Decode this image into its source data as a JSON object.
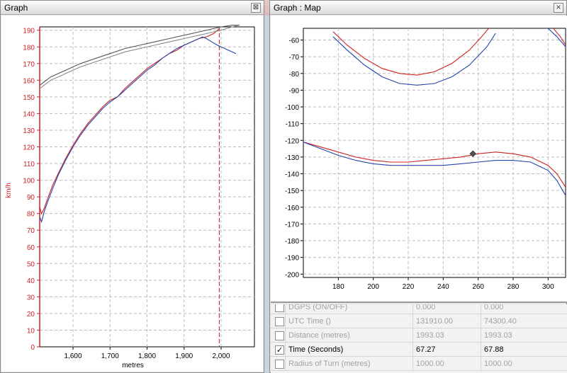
{
  "left_window": {
    "title": "Graph",
    "close_glyph": "⊠"
  },
  "right_window": {
    "title": "Graph : Map",
    "close_glyph": "×"
  },
  "chart_data": [
    {
      "type": "line",
      "xlabel": "metres",
      "ylabel": "km/h",
      "xlim": [
        1510,
        2090
      ],
      "ylim": [
        0,
        192
      ],
      "x_ticks": [
        1600,
        1700,
        1800,
        1900,
        2000
      ],
      "x_tick_labels": [
        "1,600",
        "1,700",
        "1,800",
        "1,900",
        "2,000"
      ],
      "y_ticks": [
        0,
        10,
        20,
        30,
        40,
        50,
        60,
        70,
        80,
        90,
        100,
        110,
        120,
        130,
        140,
        150,
        160,
        170,
        180,
        190
      ],
      "grid": true,
      "cursor_x": 1995,
      "ylabel_color": "#cc2222",
      "series": [
        {
          "color": "#cc2222",
          "x": [
            1510,
            1515,
            1522,
            1530,
            1545,
            1560,
            1580,
            1600,
            1620,
            1640,
            1660,
            1680,
            1700,
            1720,
            1740,
            1760,
            1780,
            1800,
            1820,
            1840,
            1860,
            1880,
            1900,
            1920,
            1940,
            1960,
            1980,
            1990,
            1995
          ],
          "y": [
            84,
            80,
            83,
            88,
            97,
            104,
            113,
            121,
            128,
            134,
            139,
            144,
            148,
            150,
            155,
            159,
            163,
            167,
            170,
            173,
            176,
            178,
            181,
            183,
            185,
            186,
            188,
            190,
            191
          ]
        },
        {
          "color": "#2244aa",
          "x": [
            1510,
            1515,
            1522,
            1530,
            1545,
            1560,
            1580,
            1600,
            1620,
            1640,
            1660,
            1680,
            1700,
            1720,
            1740,
            1760,
            1780,
            1800,
            1820,
            1840,
            1860,
            1880,
            1900,
            1920,
            1940,
            1950,
            1960,
            1975,
            1990,
            2000,
            2020,
            2040
          ],
          "y": [
            78,
            75,
            81,
            86,
            95,
            103,
            112,
            120,
            127,
            133,
            138,
            143,
            147,
            150,
            154,
            158,
            162,
            166,
            169,
            173,
            176,
            179,
            181,
            183,
            185,
            186,
            185,
            183,
            181,
            180,
            178,
            176
          ]
        },
        {
          "color": "#555555",
          "x": [
            1510,
            1540,
            1580,
            1620,
            1660,
            1700,
            1740,
            1780,
            1820,
            1860,
            1900,
            1940,
            1980,
            2000,
            2030,
            2050
          ],
          "y": [
            157,
            162,
            166,
            170,
            173,
            176,
            179,
            181,
            183,
            185,
            187,
            189,
            191,
            192,
            193,
            193
          ]
        },
        {
          "color": "#888888",
          "x": [
            1510,
            1540,
            1580,
            1620,
            1660,
            1700,
            1740,
            1780,
            1820,
            1860,
            1900,
            1940,
            1980,
            2000,
            2030,
            2050
          ],
          "y": [
            155,
            160,
            164,
            168,
            171,
            174,
            177,
            179,
            181,
            183,
            185,
            187,
            189,
            190,
            192,
            193
          ]
        }
      ]
    },
    {
      "type": "line",
      "xlim": [
        160,
        310
      ],
      "ylim": [
        -202,
        -53
      ],
      "x_ticks": [
        180,
        200,
        220,
        240,
        260,
        280,
        300
      ],
      "y_ticks": [
        -60,
        -70,
        -80,
        -90,
        -100,
        -110,
        -120,
        -130,
        -140,
        -150,
        -160,
        -170,
        -180,
        -190,
        -200
      ],
      "grid": true,
      "marker": {
        "x": 257,
        "y": -128
      },
      "series": [
        {
          "color": "#cc2222",
          "x": [
            177,
            185,
            195,
            205,
            215,
            225,
            235,
            245,
            255,
            262,
            266
          ],
          "y": [
            -55,
            -63,
            -71,
            -77,
            -80,
            -81,
            -79,
            -74,
            -66,
            -58,
            -53
          ]
        },
        {
          "color": "#2244aa",
          "x": [
            177,
            185,
            195,
            205,
            215,
            225,
            235,
            245,
            255,
            265,
            270
          ],
          "y": [
            -58,
            -66,
            -75,
            -82,
            -86,
            -87,
            -86,
            -82,
            -75,
            -64,
            -56
          ]
        },
        {
          "color": "#cc2222",
          "x": [
            160,
            170,
            180,
            190,
            200,
            210,
            220,
            230,
            240,
            250,
            260,
            270,
            280,
            290,
            300,
            305,
            310
          ],
          "y": [
            -121,
            -124,
            -127,
            -130,
            -132,
            -133,
            -133,
            -132,
            -131,
            -130,
            -128,
            -127,
            -128,
            -130,
            -135,
            -140,
            -148
          ]
        },
        {
          "color": "#2244aa",
          "x": [
            160,
            170,
            180,
            190,
            200,
            210,
            220,
            230,
            240,
            250,
            260,
            270,
            280,
            290,
            300,
            305,
            310
          ],
          "y": [
            -121,
            -125,
            -129,
            -132,
            -134,
            -135,
            -135,
            -135,
            -135,
            -134,
            -133,
            -132,
            -132,
            -133,
            -138,
            -144,
            -153
          ]
        },
        {
          "color": "#cc2222",
          "x": [
            303,
            307,
            310
          ],
          "y": [
            -53,
            -58,
            -63
          ]
        },
        {
          "color": "#2244aa",
          "x": [
            300,
            305,
            310
          ],
          "y": [
            -53,
            -58,
            -64
          ]
        }
      ]
    }
  ],
  "table": {
    "rows": [
      {
        "name": "DGPS (ON/OFF)",
        "v1": "0.000",
        "v2": "0.000",
        "checked": false,
        "active": false
      },
      {
        "name": "UTC Time ()",
        "v1": "131910.00",
        "v2": "74300.40",
        "checked": false,
        "active": false
      },
      {
        "name": "Distance (metres)",
        "v1": "1993.03",
        "v2": "1993.03",
        "checked": false,
        "active": false
      },
      {
        "name": "Time (Seconds)",
        "v1": "67.27",
        "v2": "67.88",
        "checked": true,
        "active": true
      },
      {
        "name": "Radius of Turn (metres)",
        "v1": "1000.00",
        "v2": "1000.00",
        "checked": false,
        "active": false
      }
    ]
  }
}
